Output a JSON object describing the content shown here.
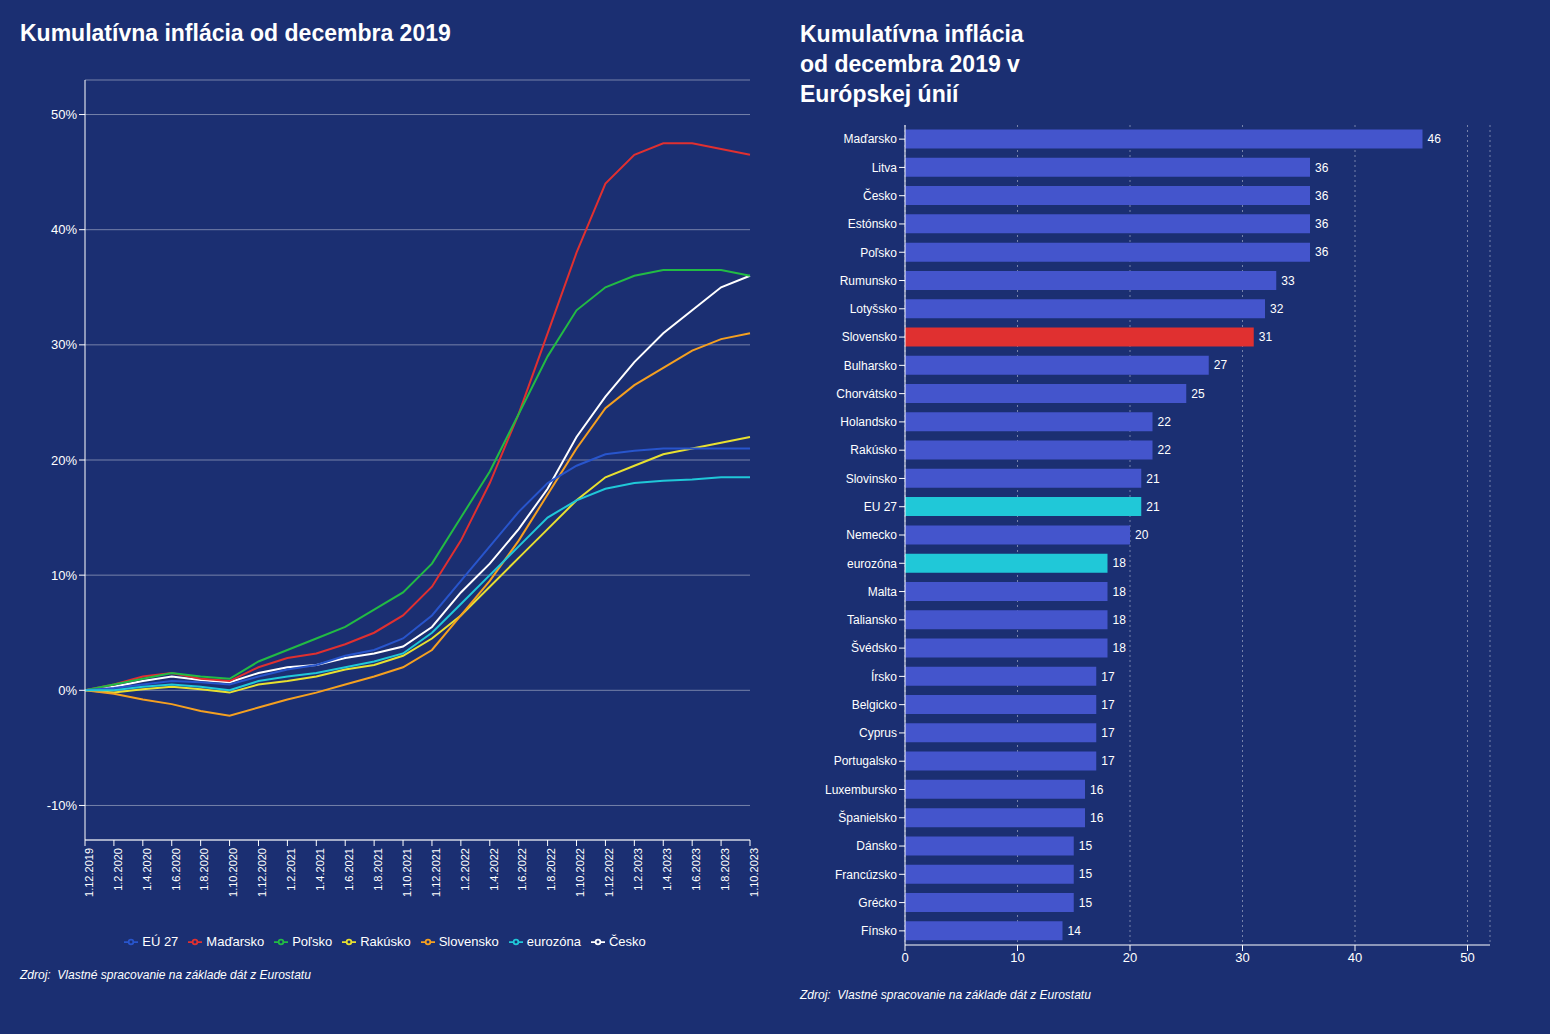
{
  "chart_data": [
    {
      "type": "line",
      "title": "Kumulatívna inflácia od decembra 2019",
      "annotations": [
        "Zdroj:  Vlastné spracovanie na základe dát z Eurostatu"
      ],
      "categories": [
        "1.12.2019",
        "1.2.2020",
        "1.4.2020",
        "1.6.2020",
        "1.8.2020",
        "1.10.2020",
        "1.12.2020",
        "1.2.2021",
        "1.4.2021",
        "1.6.2021",
        "1.8.2021",
        "1.10.2021",
        "1.12.2021",
        "1.2.2022",
        "1.4.2022",
        "1.6.2022",
        "1.8.2022",
        "1.10.2022",
        "1.12.2022",
        "1.2.2023",
        "1.4.2023",
        "1.6.2023",
        "1.8.2023",
        "1.10.2023"
      ],
      "series": [
        {
          "name": "Česko",
          "color": "#ffffff",
          "values": [
            0,
            0.3,
            0.8,
            1.2,
            0.9,
            0.7,
            1.5,
            2.0,
            2.2,
            2.8,
            3.2,
            3.8,
            5.5,
            8.5,
            11.0,
            14.0,
            17.5,
            22.0,
            25.5,
            28.5,
            31.0,
            33.0,
            35.0,
            36.0
          ]
        },
        {
          "name": "Maďarsko",
          "color": "#e03030",
          "values": [
            0,
            0.5,
            1.2,
            1.5,
            1.0,
            0.8,
            2.0,
            2.8,
            3.2,
            4.0,
            5.0,
            6.5,
            9.0,
            13.0,
            18.0,
            24.0,
            31.0,
            38.0,
            44.0,
            46.5,
            47.5,
            47.5,
            47.0,
            46.5
          ]
        },
        {
          "name": "Rakúsko",
          "color": "#e8e030",
          "values": [
            0,
            -0.2,
            0.1,
            0.3,
            0.1,
            -0.2,
            0.5,
            0.8,
            1.2,
            1.8,
            2.2,
            3.0,
            4.5,
            6.5,
            9.0,
            11.5,
            14.0,
            16.5,
            18.5,
            19.5,
            20.5,
            21.0,
            21.5,
            22.0
          ]
        },
        {
          "name": "Poľsko",
          "color": "#22bb44",
          "values": [
            0,
            0.5,
            1.0,
            1.5,
            1.2,
            1.0,
            2.5,
            3.5,
            4.5,
            5.5,
            7.0,
            8.5,
            11.0,
            15.0,
            19.0,
            24.0,
            29.0,
            33.0,
            35.0,
            36.0,
            36.5,
            36.5,
            36.5,
            36.0
          ]
        },
        {
          "name": "Slovensko",
          "color": "#f5a020",
          "values": [
            0,
            -0.3,
            -0.8,
            -1.2,
            -1.8,
            -2.2,
            -1.5,
            -0.8,
            -0.2,
            0.5,
            1.2,
            2.0,
            3.5,
            6.5,
            9.5,
            13.0,
            17.0,
            21.0,
            24.5,
            26.5,
            28.0,
            29.5,
            30.5,
            31.0
          ]
        },
        {
          "name": "EÚ 27",
          "color": "#2855cc",
          "values": [
            0,
            0.2,
            0.5,
            0.8,
            0.7,
            0.5,
            1.2,
            1.8,
            2.2,
            3.0,
            3.5,
            4.5,
            6.5,
            9.5,
            12.5,
            15.5,
            18.0,
            19.5,
            20.5,
            20.8,
            21.0,
            21.0,
            21.0,
            21.0
          ]
        },
        {
          "name": "eurozóna",
          "color": "#20c8d8",
          "values": [
            0,
            0.0,
            0.3,
            0.5,
            0.3,
            0.0,
            0.8,
            1.2,
            1.5,
            2.0,
            2.5,
            3.2,
            5.0,
            7.5,
            10.0,
            12.5,
            15.0,
            16.5,
            17.5,
            18.0,
            18.2,
            18.3,
            18.5,
            18.5
          ]
        }
      ],
      "ylim": [
        -13,
        53
      ],
      "yticks": [
        {
          "value": -10,
          "label": "-10%"
        },
        {
          "value": 0,
          "label": "0%"
        },
        {
          "value": 10,
          "label": "10%"
        },
        {
          "value": 20,
          "label": "20%"
        },
        {
          "value": 30,
          "label": "30%"
        },
        {
          "value": 40,
          "label": "40%"
        },
        {
          "value": 50,
          "label": "50%"
        }
      ],
      "grid": true,
      "legend": "bottom"
    },
    {
      "type": "bar",
      "orientation": "horizontal",
      "title": "Kumulatívna inflácia\nod decembra 2019 v\nEurópskej únií",
      "annotations": [
        "Zdroj:  Vlastné spracovanie na základe dát z Eurostatu"
      ],
      "categories": [
        "Maďarsko",
        "Litva",
        "Česko",
        "Estónsko",
        "Poľsko",
        "Rumunsko",
        "Lotyšsko",
        "Slovensko",
        "Bulharsko",
        "Chorvátsko",
        "Holandsko",
        "Rakúsko",
        "Slovinsko",
        "EU 27",
        "Nemecko",
        "eurozóna",
        "Malta",
        "Taliansko",
        "Švédsko",
        "Írsko",
        "Belgicko",
        "Cyprus",
        "Portugalsko",
        "Luxembursko",
        "Španielsko",
        "Dánsko",
        "Francúzsko",
        "Grécko",
        "Fínsko"
      ],
      "values": [
        46,
        36,
        36,
        36,
        36,
        33,
        32,
        31,
        27,
        25,
        22,
        22,
        21,
        21,
        20,
        18,
        18,
        18,
        18,
        17,
        17,
        17,
        17,
        16,
        16,
        15,
        15,
        15,
        14
      ],
      "colors": [
        "#4455cc",
        "#4455cc",
        "#4455cc",
        "#4455cc",
        "#4455cc",
        "#4455cc",
        "#4455cc",
        "#e03030",
        "#4455cc",
        "#4455cc",
        "#4455cc",
        "#4455cc",
        "#4455cc",
        "#20c8d8",
        "#4455cc",
        "#20c8d8",
        "#4455cc",
        "#4455cc",
        "#4455cc",
        "#4455cc",
        "#4455cc",
        "#4455cc",
        "#4455cc",
        "#4455cc",
        "#4455cc",
        "#4455cc",
        "#4455cc",
        "#4455cc",
        "#4455cc"
      ],
      "xlim": [
        0,
        52
      ],
      "xticks": [
        0,
        10,
        20,
        30,
        40,
        50
      ],
      "grid": true,
      "data_labels": true
    }
  ]
}
